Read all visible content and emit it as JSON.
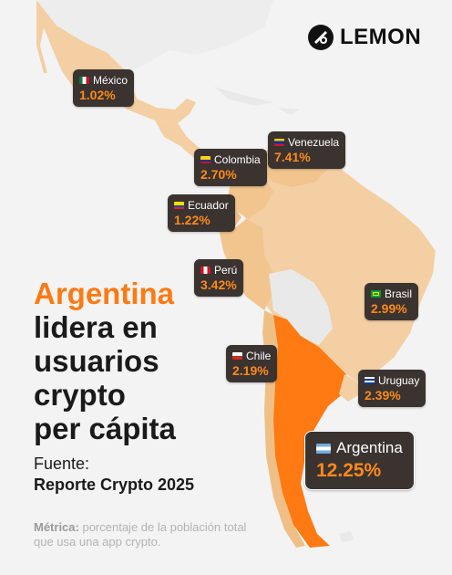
{
  "brand": {
    "name": "LEMON",
    "logo_icon": "lemon-logo-icon"
  },
  "headline": {
    "accent": "Argentina",
    "line2": "lidera en",
    "line3": "usuarios",
    "line4": "crypto",
    "line5": "per cápita"
  },
  "source": {
    "label": "Fuente:",
    "report": "Reporte Crypto 2025"
  },
  "metric": {
    "label": "Métrica:",
    "text": " porcentaje de la población total que usa una app crypto."
  },
  "colors": {
    "accent": "#ff7a12",
    "highlight_country": "#ff7a12",
    "region": "#f3cfa3",
    "badge_bg": "#3a3330",
    "percent": "#ff8a1c"
  },
  "countries": [
    {
      "name": "México",
      "value": "1.02%"
    },
    {
      "name": "Venezuela",
      "value": "7.41%"
    },
    {
      "name": "Colombia",
      "value": "2.70%"
    },
    {
      "name": "Ecuador",
      "value": "1.22%"
    },
    {
      "name": "Perú",
      "value": "3.42%"
    },
    {
      "name": "Brasil",
      "value": "2.99%"
    },
    {
      "name": "Chile",
      "value": "2.19%"
    },
    {
      "name": "Uruguay",
      "value": "2.39%"
    },
    {
      "name": "Argentina",
      "value": "12.25%"
    }
  ]
}
